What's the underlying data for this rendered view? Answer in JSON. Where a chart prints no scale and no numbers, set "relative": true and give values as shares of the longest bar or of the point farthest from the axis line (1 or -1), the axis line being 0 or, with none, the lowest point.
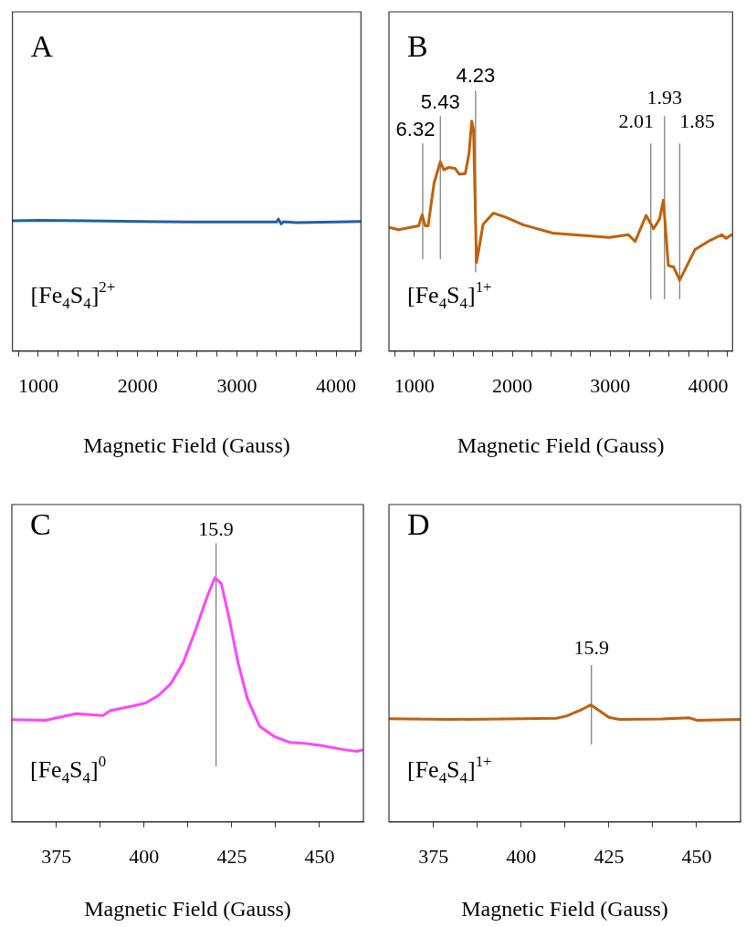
{
  "chart_data": [
    {
      "type": "line",
      "relative": true,
      "xlabel": "Magnetic Field (Gauss)",
      "color": "#1f5fa8",
      "annotations": [
        "A",
        "[Fe$_{4}$S$_{4}$]$^{2+}$"
      ],
      "x": [
        740,
        1000,
        1500,
        2000,
        2500,
        3000,
        3400,
        3420,
        3445,
        3470,
        3600,
        4000,
        4250
      ],
      "values": [
        0.987,
        0.99,
        0.987,
        0.982,
        0.978,
        0.978,
        0.978,
        1.0,
        0.964,
        0.98,
        0.973,
        0.978,
        0.982
      ],
      "xlim": [
        740,
        4250
      ],
      "xticks": [
        {
          "value": 800,
          "label": null
        },
        1000,
        {
          "value": 1200,
          "label": null
        },
        {
          "value": 1400,
          "label": null
        },
        {
          "value": 1600,
          "label": null
        },
        {
          "value": 1800,
          "label": null
        },
        2000,
        {
          "value": 2200,
          "label": null
        },
        {
          "value": 2400,
          "label": null
        },
        {
          "value": 2600,
          "label": null
        },
        {
          "value": 2800,
          "label": null
        },
        3000,
        {
          "value": 3200,
          "label": null
        },
        {
          "value": 3400,
          "label": null
        },
        {
          "value": 3600,
          "label": null
        },
        {
          "value": 3800,
          "label": null
        },
        4000,
        {
          "value": 4200,
          "label": null
        }
      ]
    },
    {
      "type": "line",
      "relative": true,
      "xlabel": "Magnetic Field (Gauss)",
      "color": "#c0600a",
      "x": [
        740,
        837,
        958,
        1043,
        1079,
        1110,
        1140,
        1201,
        1264,
        1301,
        1352,
        1413,
        1458,
        1519,
        1558,
        1585,
        1604,
        1634,
        1661,
        1701,
        1807,
        1928,
        2110,
        2413,
        2716,
        2989,
        3186,
        3255,
        3367,
        3443,
        3504,
        3543,
        3594,
        3649,
        3710,
        3867,
        4019,
        4140,
        4185,
        4240
      ],
      "values": [
        0.538,
        0.528,
        0.538,
        0.545,
        0.592,
        0.545,
        0.545,
        0.731,
        0.823,
        0.788,
        0.799,
        0.795,
        0.769,
        0.772,
        0.859,
        1.0,
        0.962,
        0.385,
        0.449,
        0.551,
        0.6,
        0.583,
        0.549,
        0.513,
        0.503,
        0.494,
        0.506,
        0.477,
        0.59,
        0.532,
        0.574,
        0.656,
        0.372,
        0.365,
        0.308,
        0.442,
        0.481,
        0.506,
        0.49,
        0.506
      ],
      "xlim": [
        740,
        4250
      ],
      "xticks": [
        {
          "value": 800,
          "label": null
        },
        1000,
        {
          "value": 1200,
          "label": null
        },
        {
          "value": 1400,
          "label": null
        },
        {
          "value": 1600,
          "label": null
        },
        {
          "value": 1800,
          "label": null
        },
        2000,
        {
          "value": 2200,
          "label": null
        },
        {
          "value": 2400,
          "label": null
        },
        {
          "value": 2600,
          "label": null
        },
        {
          "value": 2800,
          "label": null
        },
        3000,
        {
          "value": 3200,
          "label": null
        },
        {
          "value": 3400,
          "label": null
        },
        {
          "value": 3600,
          "label": null
        },
        {
          "value": 3800,
          "label": null
        },
        4000,
        {
          "value": 4200,
          "label": null
        }
      ],
      "annotations": [
        "B",
        "[Fe$_{4}$S$_{4}$]$^{1+}$",
        "6.32",
        "5.43",
        "4.23",
        "2.01",
        "1.93",
        "1.85"
      ],
      "ref_lines": [
        {
          "axis": "x",
          "value": 1085,
          "color": "#808080"
        },
        {
          "axis": "x",
          "value": 1265,
          "color": "#808080"
        },
        {
          "axis": "x",
          "value": 1625,
          "color": "#808080"
        },
        {
          "axis": "x",
          "value": 3415,
          "color": "#808080"
        },
        {
          "axis": "x",
          "value": 3555,
          "color": "#808080"
        },
        {
          "axis": "x",
          "value": 3710,
          "color": "#808080"
        }
      ]
    },
    {
      "type": "line",
      "relative": true,
      "xlabel": "Magnetic Field (Gauss)",
      "color": "#ff44ff",
      "annotations": [
        "C",
        "[Fe$_{4}$S$_{4}$]$^{0}$",
        "15.9"
      ],
      "ref_lines": [
        {
          "axis": "x",
          "value": 420.5,
          "color": "#808080"
        }
      ],
      "x": [
        362.3,
        371.9,
        380.6,
        388.4,
        390.2,
        397.1,
        400.6,
        404.1,
        407.6,
        411.1,
        414.6,
        418.1,
        420.2,
        422.0,
        424.1,
        426.8,
        429.4,
        432.9,
        437.2,
        441.6,
        445.1,
        450.3,
        457.3,
        460.7,
        462.3
      ],
      "values": [
        0.419,
        0.416,
        0.443,
        0.436,
        0.455,
        0.476,
        0.488,
        0.518,
        0.566,
        0.651,
        0.783,
        0.928,
        1.0,
        0.976,
        0.843,
        0.651,
        0.506,
        0.392,
        0.349,
        0.325,
        0.323,
        0.313,
        0.295,
        0.289,
        0.295
      ],
      "xlim": [
        362.3,
        462.5
      ],
      "xticks": [
        375,
        {
          "value": 387.5,
          "label": null
        },
        400,
        {
          "value": 412.5,
          "label": null
        },
        425,
        {
          "value": 437.5,
          "label": null
        },
        450
      ]
    },
    {
      "type": "line",
      "relative": true,
      "xlabel": "Magnetic Field (Gauss)",
      "color": "#c0600a",
      "annotations": [
        "D",
        "[Fe$_{4}$S$_{4}$]$^{1+}$",
        "15.9"
      ],
      "ref_lines": [
        {
          "axis": "x",
          "value": 420,
          "color": "#808080"
        }
      ],
      "x": [
        362.5,
        380,
        400,
        410,
        413,
        417,
        419.8,
        422,
        425,
        428,
        440,
        448,
        450,
        462.5
      ],
      "values": [
        0.88,
        0.875,
        0.88,
        0.885,
        0.905,
        0.955,
        1.0,
        0.955,
        0.893,
        0.875,
        0.878,
        0.888,
        0.868,
        0.875
      ],
      "xlim": [
        362.3,
        462.5
      ],
      "xticks": [
        375,
        {
          "value": 387.5,
          "label": null
        },
        400,
        {
          "value": 412.5,
          "label": null
        },
        425,
        {
          "value": 437.5,
          "label": null
        },
        450
      ]
    }
  ]
}
